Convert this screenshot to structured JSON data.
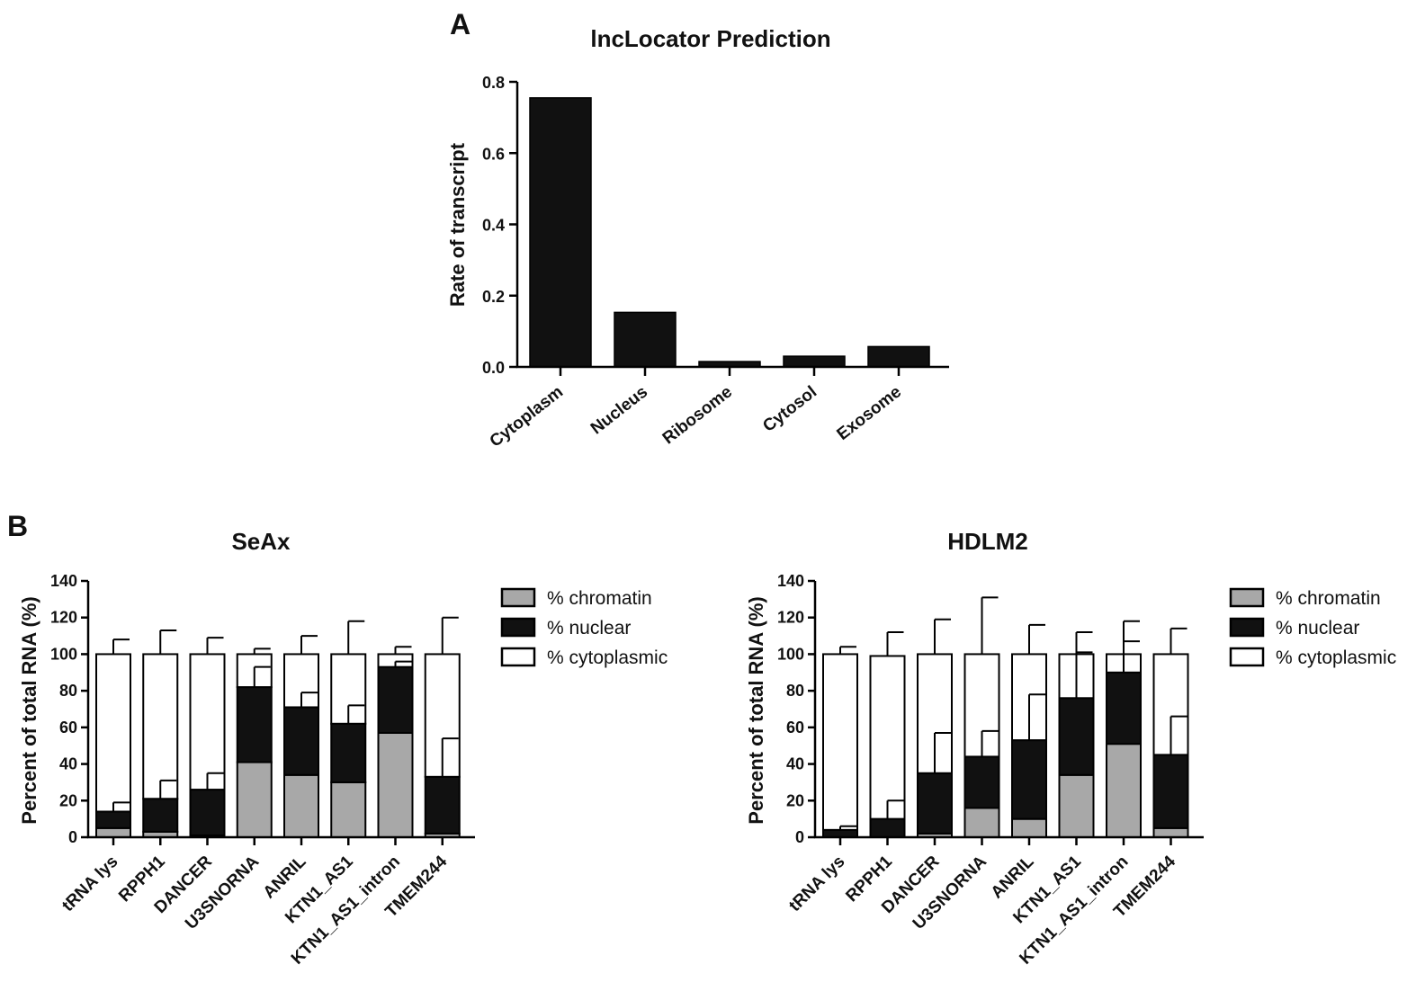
{
  "chart_data": [
    {
      "panel": "A",
      "type": "bar",
      "title": "lncLocator Prediction",
      "xlabel": "",
      "ylabel": "Rate of transcript",
      "ylim": [
        0,
        0.8
      ],
      "yticks": [
        "0.0",
        "0.2",
        "0.4",
        "0.6",
        "0.8"
      ],
      "categories": [
        "Cytoplasm",
        "Nucleus",
        "Ribosome",
        "Cytosol",
        "Exosome"
      ],
      "values": [
        0.755,
        0.153,
        0.015,
        0.03,
        0.057
      ],
      "bar_color": "#111111"
    },
    {
      "panel": "B",
      "type": "bar",
      "stacked": true,
      "title": "SeAx",
      "xlabel": "",
      "ylabel": "Percent of total RNA (%)",
      "ylim": [
        0,
        140
      ],
      "yticks": [
        "0",
        "20",
        "40",
        "60",
        "80",
        "100",
        "120",
        "140"
      ],
      "categories": [
        "tRNA lys",
        "RPPH1",
        "DANCER",
        "U3SNORNA",
        "ANRIL",
        "KTN1_AS1",
        "KTN1_AS1_intron",
        "TMEM244"
      ],
      "series": [
        {
          "name": "% chromatin",
          "color": "#a8a8a8",
          "values": [
            5,
            3,
            1,
            41,
            34,
            30,
            57,
            2
          ],
          "error": [
            0,
            0,
            0,
            0,
            0,
            0,
            0,
            0
          ]
        },
        {
          "name": "% nuclear",
          "color": "#111111",
          "values": [
            9,
            18,
            25,
            41,
            37,
            32,
            36,
            31
          ],
          "error": [
            5,
            10,
            9,
            11,
            8,
            10,
            3,
            21
          ]
        },
        {
          "name": "% cytoplasmic",
          "color": "#ffffff",
          "values": [
            86,
            79,
            74,
            18,
            29,
            38,
            7,
            67
          ],
          "error": [
            8,
            13,
            9,
            3,
            10,
            18,
            4,
            20
          ]
        }
      ],
      "legend": [
        "% chromatin",
        "% nuclear",
        "% cytoplasmic"
      ],
      "legend_position": "right"
    },
    {
      "panel": "",
      "type": "bar",
      "stacked": true,
      "title": "HDLM2",
      "xlabel": "",
      "ylabel": "Percent of total RNA (%)",
      "ylim": [
        0,
        140
      ],
      "yticks": [
        "0",
        "20",
        "40",
        "60",
        "80",
        "100",
        "120",
        "140"
      ],
      "categories": [
        "tRNA lys",
        "RPPH1",
        "DANCER",
        "U3SNORNA",
        "ANRIL",
        "KTN1_AS1",
        "KTN1_AS1_intron",
        "TMEM244"
      ],
      "series": [
        {
          "name": "% chromatin",
          "color": "#a8a8a8",
          "values": [
            0,
            0,
            2,
            16,
            10,
            34,
            51,
            5
          ],
          "error": [
            0,
            0,
            0,
            0,
            0,
            0,
            0,
            0
          ]
        },
        {
          "name": "% nuclear",
          "color": "#111111",
          "values": [
            4,
            10,
            33,
            28,
            43,
            42,
            39,
            40
          ],
          "error": [
            2,
            10,
            22,
            14,
            25,
            25,
            17,
            21
          ]
        },
        {
          "name": "% cytoplasmic",
          "color": "#ffffff",
          "values": [
            96,
            89,
            65,
            56,
            47,
            24,
            10,
            55
          ],
          "error": [
            4,
            13,
            19,
            31,
            16,
            12,
            18,
            14
          ]
        }
      ],
      "legend": [
        "% chromatin",
        "% nuclear",
        "% cytoplasmic"
      ],
      "legend_position": "right"
    }
  ]
}
